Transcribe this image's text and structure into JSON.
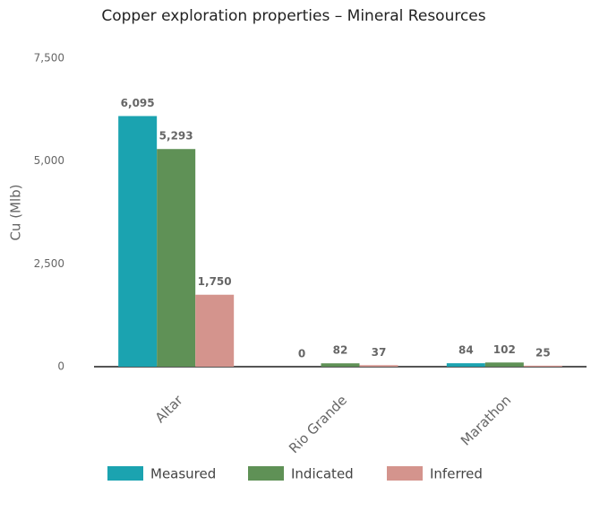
{
  "chart_data": {
    "type": "bar",
    "title": "Copper exploration properties – Mineral Resources",
    "y_label": "Cu (Mlb)",
    "categories": [
      "Altar",
      "Rio Grande",
      "Marathon"
    ],
    "series": [
      {
        "name": "Measured",
        "color": "#1ba3b0",
        "values": [
          6095,
          0,
          84
        ],
        "value_labels": [
          "6,095",
          "0",
          "84"
        ]
      },
      {
        "name": "Indicated",
        "color": "#5f9156",
        "values": [
          5293,
          82,
          102
        ],
        "value_labels": [
          "5,293",
          "82",
          "102"
        ]
      },
      {
        "name": "Inferred",
        "color": "#d4948d",
        "values": [
          1750,
          37,
          25
        ],
        "value_labels": [
          "1,750",
          "37",
          "25"
        ]
      }
    ],
    "ylim": [
      0,
      7500
    ],
    "yticks": [
      0,
      {
        "value": 2500,
        "label": "2,500"
      },
      {
        "value": 5000,
        "label": "5,000"
      },
      {
        "value": 7500,
        "label": "7,500"
      }
    ],
    "grid": false,
    "legend": "bottom"
  }
}
